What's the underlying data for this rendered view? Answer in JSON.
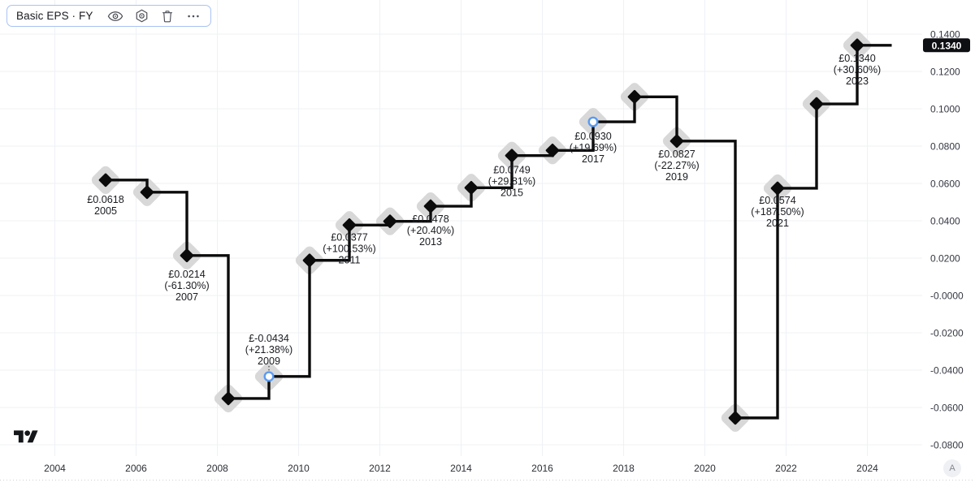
{
  "toolbar": {
    "title": "Basic EPS · FY",
    "buttons": [
      {
        "id": "visibility",
        "icon": "eye-icon"
      },
      {
        "id": "settings",
        "icon": "gear-icon"
      },
      {
        "id": "delete",
        "icon": "trash-icon"
      },
      {
        "id": "more",
        "icon": "ellipsis-icon"
      }
    ]
  },
  "chart_data": {
    "type": "line",
    "subtype": "step-after",
    "title": "Basic EPS · FY",
    "currency_prefix": "£",
    "grid": true,
    "legend_position": "none",
    "ylim": [
      -0.08,
      0.14
    ],
    "extend_right_to_year": 2024.6,
    "colors": {
      "line": "#0b0b0c",
      "marker": "#0b0b0c",
      "highlight": "#d8d8d8",
      "grid": "#eff1f6",
      "selected_ring": "#5a9bf0",
      "label_text": "#1a1c21",
      "axis_text": "#363943",
      "x_axis_text": "#2c2f36",
      "badge_bg": "#0e0f13",
      "badge_text": "#ffffff",
      "separator": "#cdd0d8"
    },
    "points": [
      {
        "fy": 2005,
        "year_frac": 2005.25,
        "value": 0.0618,
        "marker": "diamond",
        "label": [
          "£0.0618",
          "2005"
        ],
        "label_side": "below",
        "label_dy": 28,
        "leader": false
      },
      {
        "fy": 2006,
        "year_frac": 2006.27,
        "value": 0.0553,
        "marker": "diamond"
      },
      {
        "fy": 2007,
        "year_frac": 2007.25,
        "value": 0.0214,
        "marker": "diamond",
        "label": [
          "£0.0214",
          "(-61.30%)",
          "2007"
        ],
        "label_side": "below",
        "label_dy": 27,
        "leader": false
      },
      {
        "fy": 2008,
        "year_frac": 2008.27,
        "value": -0.0552,
        "marker": "diamond"
      },
      {
        "fy": 2009,
        "year_frac": 2009.27,
        "value": -0.0434,
        "marker": "circle",
        "label": [
          "£-0.0434",
          "(+21.38%)",
          "2009"
        ],
        "label_side": "above",
        "label_dy": -43,
        "leader": true
      },
      {
        "fy": 2010,
        "year_frac": 2010.27,
        "value": 0.0188,
        "marker": "diamond"
      },
      {
        "fy": 2011,
        "year_frac": 2011.25,
        "value": 0.0377,
        "marker": "diamond",
        "label": [
          "£0.0377",
          "(+100.53%)",
          "2011"
        ],
        "label_side": "below",
        "label_dy": 19,
        "leader": true
      },
      {
        "fy": 2012,
        "year_frac": 2012.25,
        "value": 0.0397,
        "marker": "diamond"
      },
      {
        "fy": 2013,
        "year_frac": 2013.25,
        "value": 0.0478,
        "marker": "diamond",
        "label": [
          "£0.0478",
          "(+20.40%)",
          "2013"
        ],
        "label_side": "below",
        "label_dy": 20,
        "leader": false
      },
      {
        "fy": 2014,
        "year_frac": 2014.25,
        "value": 0.0577,
        "marker": "diamond"
      },
      {
        "fy": 2015,
        "year_frac": 2015.25,
        "value": 0.0749,
        "marker": "diamond",
        "label": [
          "£0.0749",
          "(+29.81%)",
          "2015"
        ],
        "label_side": "below",
        "label_dy": 22,
        "leader": true
      },
      {
        "fy": 2016,
        "year_frac": 2016.25,
        "value": 0.0777,
        "marker": "diamond"
      },
      {
        "fy": 2017,
        "year_frac": 2017.25,
        "value": 0.093,
        "marker": "circle",
        "label": [
          "£0.0930",
          "(+19.69%)",
          "2017"
        ],
        "label_side": "below",
        "label_dy": 22,
        "leader": true
      },
      {
        "fy": 2018,
        "year_frac": 2018.27,
        "value": 0.1064,
        "marker": "diamond"
      },
      {
        "fy": 2019,
        "year_frac": 2019.31,
        "value": 0.0827,
        "marker": "diamond",
        "label": [
          "£0.0827",
          "(-22.27%)",
          "2019"
        ],
        "label_side": "below",
        "label_dy": 20,
        "leader": false
      },
      {
        "fy": 2020,
        "year_frac": 2020.75,
        "value": -0.0656,
        "marker": "diamond"
      },
      {
        "fy": 2021,
        "year_frac": 2021.79,
        "value": 0.0574,
        "marker": "diamond",
        "label": [
          "£0.0574",
          "(+187.50%)",
          "2021"
        ],
        "label_side": "below",
        "label_dy": 19,
        "leader": true
      },
      {
        "fy": 2022,
        "year_frac": 2022.75,
        "value": 0.1026,
        "marker": "diamond"
      },
      {
        "fy": 2023,
        "year_frac": 2023.75,
        "value": 0.134,
        "marker": "diamond",
        "label": [
          "£0.1340",
          "(+30.60%)",
          "2023"
        ],
        "label_side": "below",
        "label_dy": 20,
        "leader": true
      }
    ],
    "y_axis": {
      "side": "right",
      "ticks": [
        {
          "label": "0.1400",
          "value": 0.14
        },
        {
          "label": "0.1200",
          "value": 0.12
        },
        {
          "label": "0.1000",
          "value": 0.1
        },
        {
          "label": "0.0800",
          "value": 0.08
        },
        {
          "label": "0.0600",
          "value": 0.06
        },
        {
          "label": "0.0400",
          "value": 0.04
        },
        {
          "label": "0.0200",
          "value": 0.02
        },
        {
          "label": "-0.0000",
          "value": 0.0
        },
        {
          "label": "-0.0200",
          "value": -0.02
        },
        {
          "label": "-0.0400",
          "value": -0.04
        },
        {
          "label": "-0.0600",
          "value": -0.06
        },
        {
          "label": "-0.0800",
          "value": -0.08
        }
      ],
      "last_value_badge": {
        "label": "0.1340",
        "value": 0.134
      }
    },
    "x_axis": {
      "ticks": [
        {
          "label": "2004",
          "value": 2004
        },
        {
          "label": "2006",
          "value": 2006
        },
        {
          "label": "2008",
          "value": 2008
        },
        {
          "label": "2010",
          "value": 2010
        },
        {
          "label": "2012",
          "value": 2012
        },
        {
          "label": "2014",
          "value": 2014
        },
        {
          "label": "2016",
          "value": 2016
        },
        {
          "label": "2018",
          "value": 2018
        },
        {
          "label": "2020",
          "value": 2020
        },
        {
          "label": "2022",
          "value": 2022
        },
        {
          "label": "2024",
          "value": 2024
        }
      ]
    }
  },
  "misc": {
    "corner_button": "A"
  }
}
